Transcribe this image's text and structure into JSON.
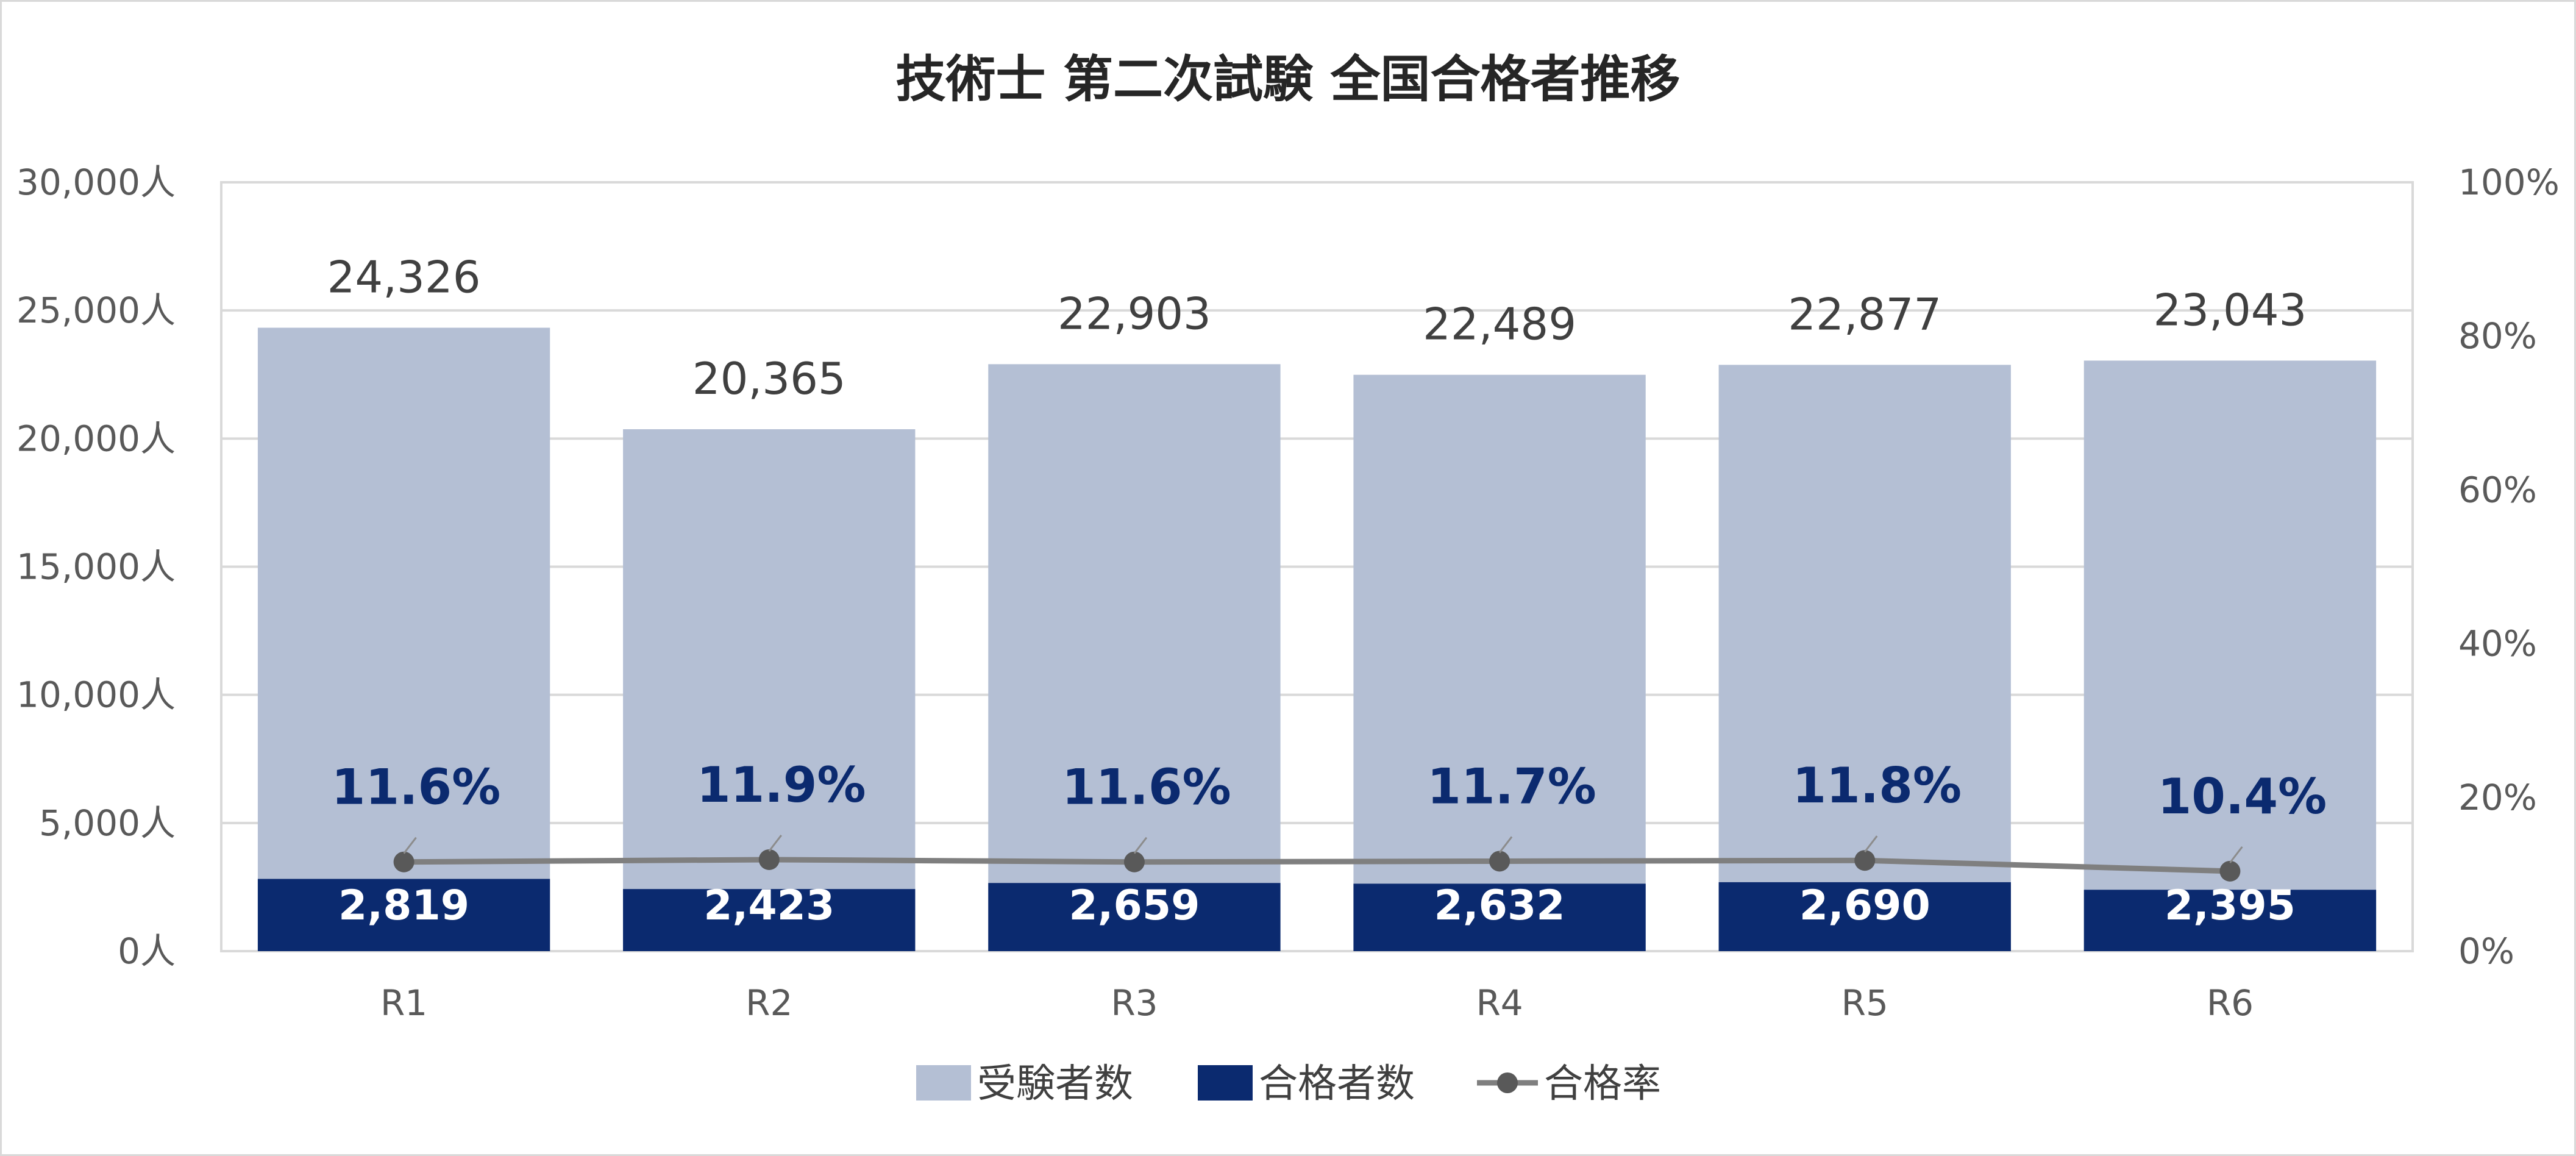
{
  "chart_data": {
    "type": "bar",
    "title": "技術士 第二次試験 全国合格者推移",
    "categories": [
      "R1",
      "R2",
      "R3",
      "R4",
      "R5",
      "R6"
    ],
    "series": [
      {
        "name": "受験者数",
        "type": "bar",
        "axis": "left",
        "color": "#b4bfd4",
        "values": [
          24326,
          20365,
          22903,
          22489,
          22877,
          23043
        ],
        "labels": [
          "24,326",
          "20,365",
          "22,903",
          "22,489",
          "22,877",
          "23,043"
        ]
      },
      {
        "name": "合格者数",
        "type": "bar",
        "axis": "left",
        "color": "#0b2a6f",
        "values": [
          2819,
          2423,
          2659,
          2632,
          2690,
          2395
        ],
        "labels": [
          "2,819",
          "2,423",
          "2,659",
          "2,632",
          "2,690",
          "2,395"
        ]
      },
      {
        "name": "合格率",
        "type": "line",
        "axis": "right",
        "color": "#7f7f7f",
        "values": [
          11.6,
          11.9,
          11.6,
          11.7,
          11.8,
          10.4
        ],
        "labels": [
          "11.6%",
          "11.9%",
          "11.6%",
          "11.7%",
          "11.8%",
          "10.4%"
        ]
      }
    ],
    "y_left": {
      "range": [
        0,
        30000
      ],
      "ticks": [
        0,
        5000,
        10000,
        15000,
        20000,
        25000,
        30000
      ],
      "tick_labels": [
        "0人",
        "5,000人",
        "10,000人",
        "15,000人",
        "20,000人",
        "25,000人",
        "30,000人"
      ]
    },
    "y_right": {
      "range": [
        0,
        100
      ],
      "ticks": [
        0,
        20,
        40,
        60,
        80,
        100
      ],
      "tick_labels": [
        "0%",
        "20%",
        "40%",
        "60%",
        "80%",
        "100%"
      ]
    },
    "grid": true,
    "legend_position": "bottom"
  }
}
